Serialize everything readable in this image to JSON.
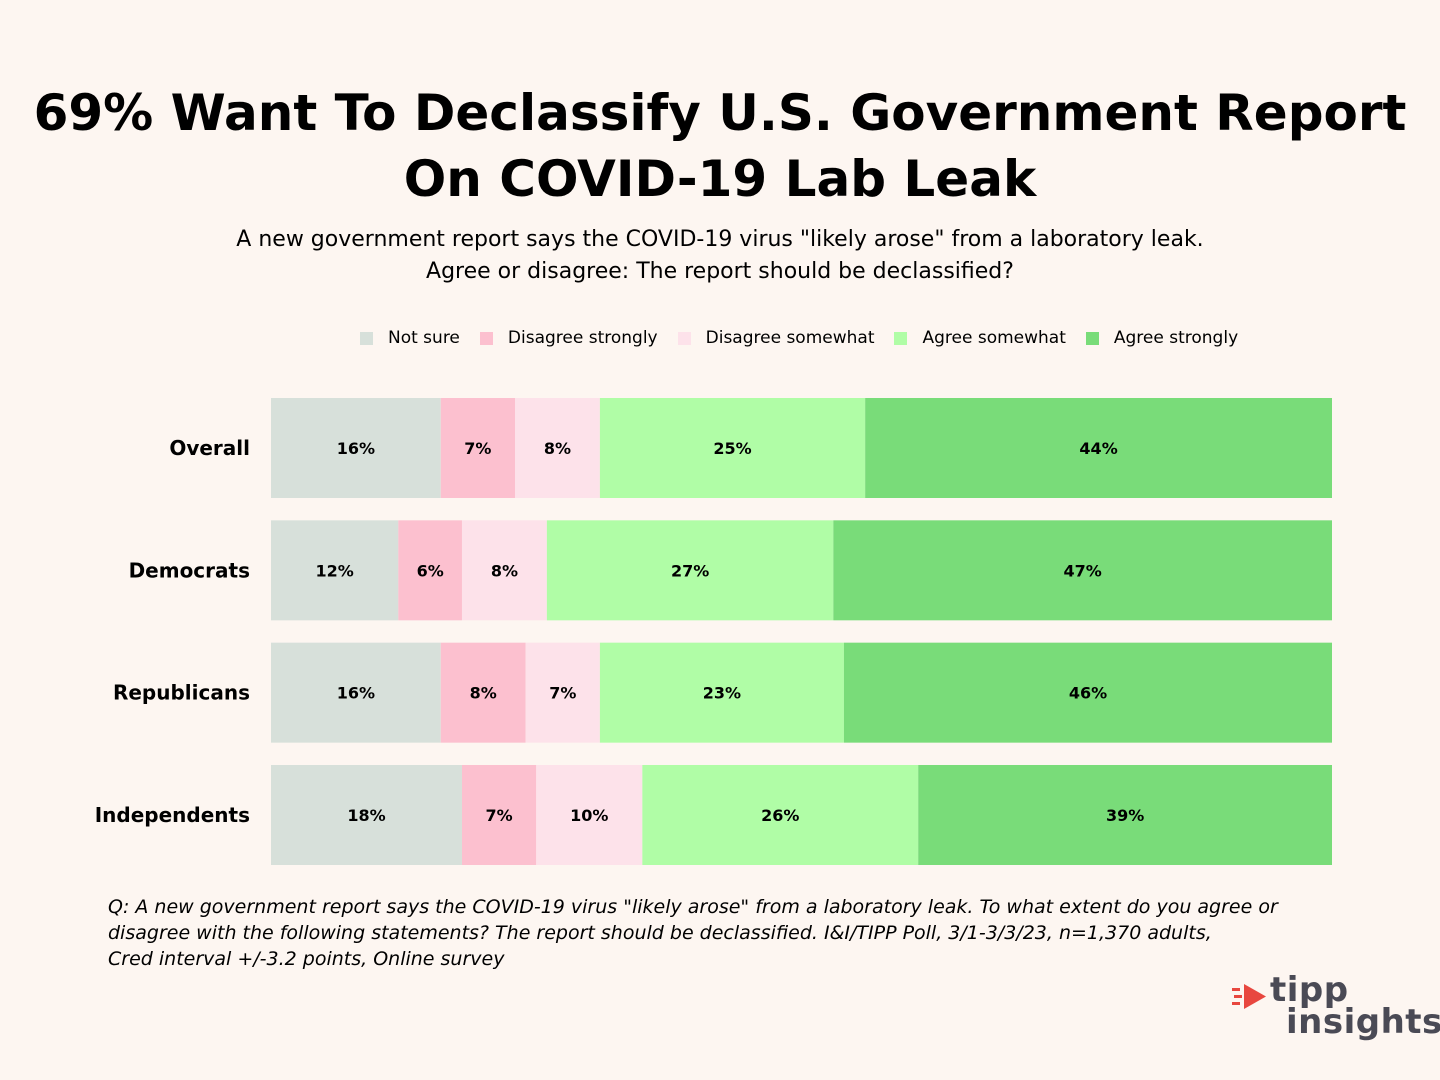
{
  "header": {
    "title_line1": "69% Want To Declassify U.S. Government Report",
    "title_line2": "On COVID-19 Lab Leak",
    "subtitle_line1": "A new government report says the COVID-19 virus \"likely arose\" from a laboratory leak.",
    "subtitle_line2": "Agree or disagree: The report should be declassified?"
  },
  "chart_data": {
    "type": "bar",
    "orientation": "horizontal",
    "stacked": true,
    "categories": [
      "Overall",
      "Democrats",
      "Republicans",
      "Independents"
    ],
    "series": [
      {
        "name": "Not sure",
        "color": "#d7e0da",
        "values": [
          16,
          12,
          16,
          18
        ]
      },
      {
        "name": "Disagree strongly",
        "color": "#fcc0cf",
        "values": [
          7,
          6,
          8,
          7
        ]
      },
      {
        "name": "Disagree somewhat",
        "color": "#fde2ea",
        "values": [
          8,
          8,
          7,
          10
        ]
      },
      {
        "name": "Agree somewhat",
        "color": "#b0fda6",
        "values": [
          25,
          27,
          23,
          26
        ]
      },
      {
        "name": "Agree strongly",
        "color": "#79dc79",
        "values": [
          44,
          47,
          46,
          39
        ]
      }
    ],
    "value_suffix": "%",
    "legend_position": "top",
    "grid": false
  },
  "footnote": {
    "line1": "Q:  A new government report says the COVID-19 virus \"likely arose\" from a laboratory leak. To what extent do you agree or",
    "line2": "disagree with the following statements? The report should be declassified. I&I/TIPP Poll, 3/1-3/3/23, n=1,370 adults,",
    "line3": "Cred interval +/-3.2 points, Online survey"
  },
  "logo": {
    "word1": "tipp",
    "word2": "insights",
    "accent_color": "#e8473f"
  }
}
